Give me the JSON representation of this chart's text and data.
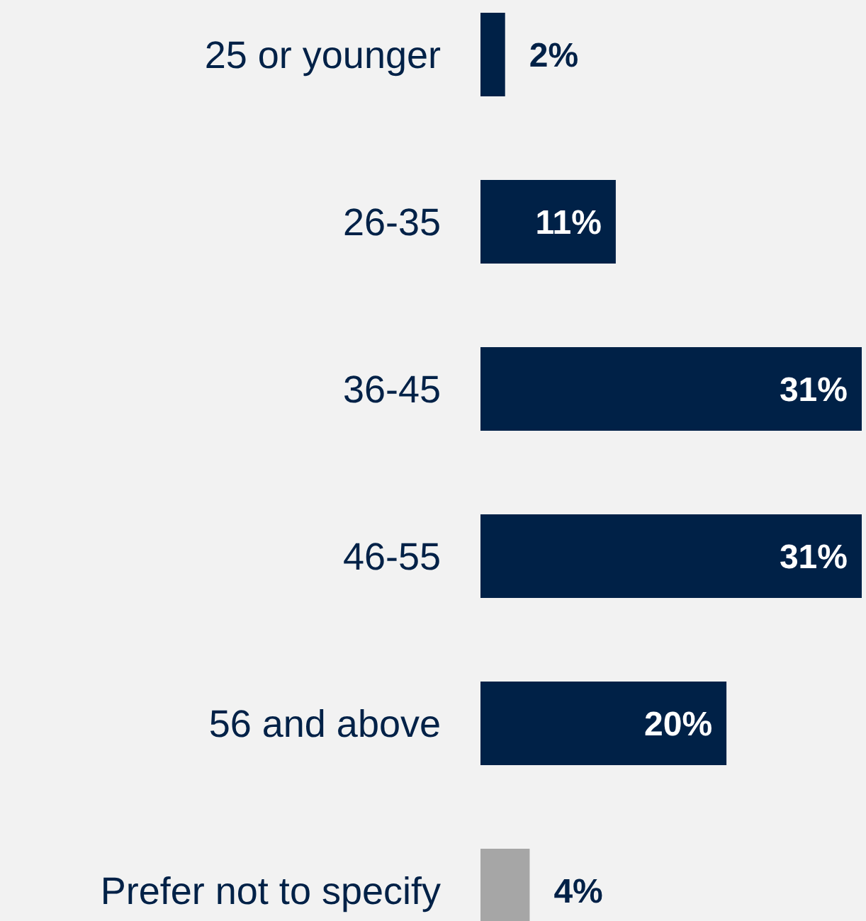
{
  "chart_data": {
    "type": "bar",
    "orientation": "horizontal",
    "categories": [
      "25 or younger",
      "26-35",
      "36-45",
      "46-55",
      "56 and above",
      "Prefer not to specify"
    ],
    "values": [
      2,
      11,
      31,
      31,
      20,
      4
    ],
    "value_labels": [
      "2%",
      "11%",
      "31%",
      "31%",
      "20%",
      "4%"
    ],
    "colors": [
      "#002147",
      "#002147",
      "#002147",
      "#002147",
      "#002147",
      "#a6a6a6"
    ]
  }
}
